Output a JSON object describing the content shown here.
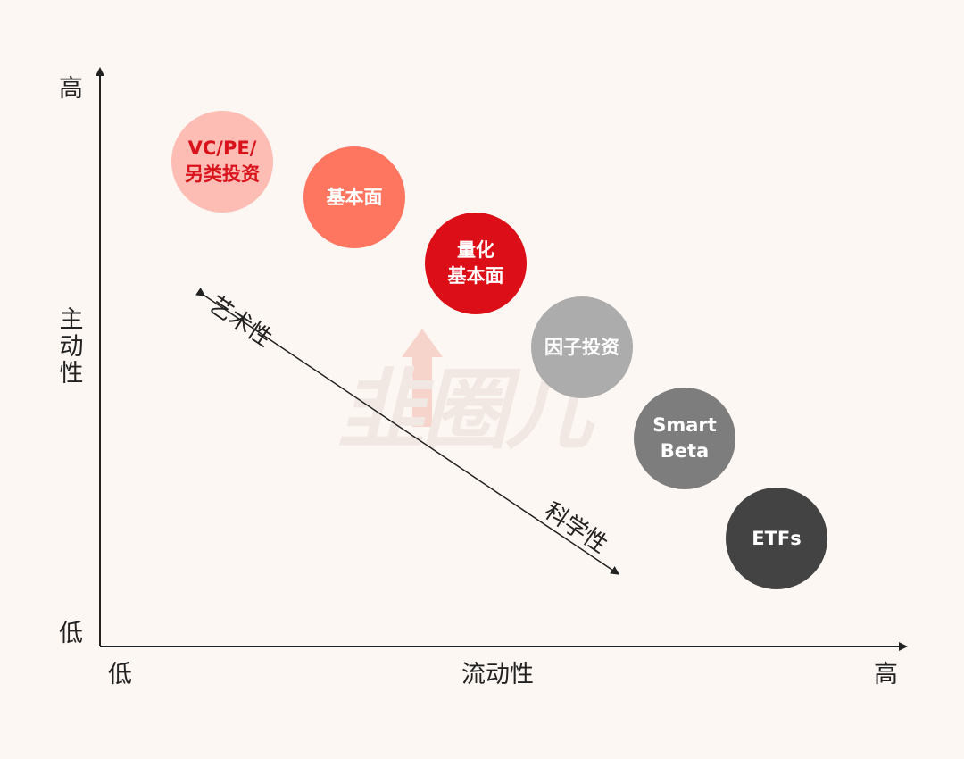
{
  "y_axis": {
    "high": "高",
    "title": "主动性",
    "low": "低"
  },
  "x_axis": {
    "low": "低",
    "title": "流动性",
    "high": "高"
  },
  "watermark": {
    "text": "韭圈儿"
  },
  "diagonal": {
    "top_label": "艺术性",
    "bottom_label": "科学性"
  },
  "bubbles": [
    {
      "lines": [
        "VC/PE/",
        "另类投资"
      ],
      "fill": "#fdbcb4",
      "text_color": "#d9131c"
    },
    {
      "lines": [
        "基本面"
      ],
      "fill": "#fe7560",
      "text_color": "#ffffff"
    },
    {
      "lines": [
        "量化",
        "基本面"
      ],
      "fill": "#dc0e17",
      "text_color": "#ffffff"
    },
    {
      "lines": [
        "因子投资"
      ],
      "fill": "#acacac",
      "text_color": "#ffffff"
    },
    {
      "lines": [
        "Smart",
        "Beta"
      ],
      "fill": "#7d7d7d",
      "text_color": "#ffffff"
    },
    {
      "lines": [
        "ETFs"
      ],
      "fill": "#434343",
      "text_color": "#ffffff"
    }
  ]
}
